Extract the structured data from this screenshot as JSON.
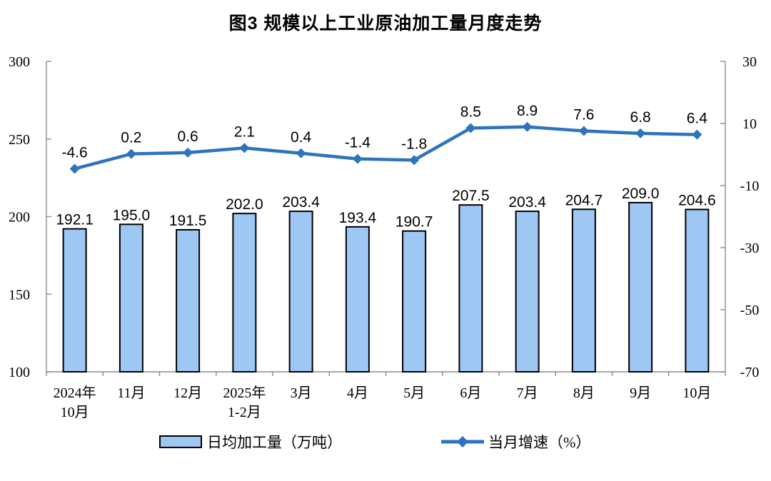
{
  "title": "图3 规模以上工业原油加工量月度走势",
  "chart_data": {
    "type": "combo-bar-line",
    "title": "图3 规模以上工业原油加工量月度走势",
    "categories": [
      "2024年\n10月",
      "11月",
      "12月",
      "2025年\n1-2月",
      "3月",
      "4月",
      "5月",
      "6月",
      "7月",
      "8月",
      "9月",
      "10月"
    ],
    "series": [
      {
        "name": "日均加工量（万吨）",
        "type": "bar",
        "axis": "left",
        "values": [
          192.1,
          195.0,
          191.5,
          202.0,
          203.4,
          193.4,
          190.7,
          207.5,
          203.4,
          204.7,
          209.0,
          204.6
        ],
        "fill": "#9EC7F3",
        "border": "#000000"
      },
      {
        "name": "当月增速（%）",
        "type": "line",
        "axis": "right",
        "values": [
          -4.6,
          0.2,
          0.6,
          2.1,
          0.4,
          -1.4,
          -1.8,
          8.5,
          8.9,
          7.6,
          6.8,
          6.4
        ],
        "color": "#2E73BE",
        "marker": "diamond"
      }
    ],
    "left_axis": {
      "min": 100,
      "max": 300,
      "ticks": [
        100,
        150,
        200,
        250,
        300
      ]
    },
    "right_axis": {
      "min": -70,
      "max": 30,
      "ticks": [
        -70,
        -50,
        -30,
        -10,
        10,
        30
      ]
    },
    "grid": false,
    "legend_position": "bottom",
    "value_label_decimals": 1,
    "axis_color": "#8C8C8C",
    "text_color": "#000000"
  }
}
